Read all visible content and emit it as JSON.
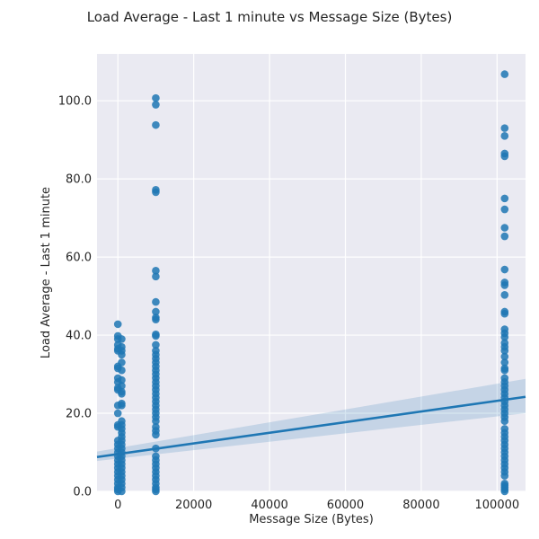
{
  "chart_data": {
    "type": "scatter",
    "title": "Load Average - Last 1 minute vs Message Size (Bytes)",
    "xlabel": "Message Size (Bytes)",
    "ylabel": "Load Average - Last 1 minute",
    "xlim": [
      -5500,
      107500
    ],
    "ylim": [
      0,
      112
    ],
    "x_ticks": [
      0,
      20000,
      40000,
      60000,
      80000,
      100000
    ],
    "y_ticks": [
      0,
      20,
      40,
      60,
      80,
      100
    ],
    "x_tick_labels": [
      "0",
      "20000",
      "40000",
      "60000",
      "80000",
      "100000"
    ],
    "y_tick_labels": [
      "0.0",
      "20.0",
      "40.0",
      "60.0",
      "80.0",
      "100.0"
    ],
    "grid": true,
    "background_color": "#eaeaf2",
    "point_color": "#1f77b4",
    "regression_line": {
      "x": [
        -5500,
        107500
      ],
      "y": [
        8.8,
        24.2
      ],
      "ci_lower": [
        7.8,
        20.0
      ],
      "ci_upper": [
        10.2,
        28.8
      ]
    },
    "series": [
      {
        "points": [
          [
            0,
            42.8
          ],
          [
            0,
            39.8
          ],
          [
            0,
            39.0
          ],
          [
            0,
            37.5
          ],
          [
            0,
            36.5
          ],
          [
            0,
            36.0
          ],
          [
            0,
            32.0
          ],
          [
            0,
            31.5
          ],
          [
            0,
            29.0
          ],
          [
            0,
            28.0
          ],
          [
            0,
            26.5
          ],
          [
            0,
            26.0
          ],
          [
            0,
            22.0
          ],
          [
            0,
            20.0
          ],
          [
            0,
            17.0
          ],
          [
            0,
            16.5
          ],
          [
            0,
            13.0
          ],
          [
            0,
            12.0
          ],
          [
            0,
            11.0
          ],
          [
            0,
            10.0
          ],
          [
            0,
            9.0
          ],
          [
            0,
            8.0
          ],
          [
            0,
            7.0
          ],
          [
            0,
            6.0
          ],
          [
            0,
            5.0
          ],
          [
            0,
            4.0
          ],
          [
            0,
            3.0
          ],
          [
            0,
            2.0
          ],
          [
            0,
            1.0
          ],
          [
            0,
            0.5
          ],
          [
            0,
            0.0
          ],
          [
            1000,
            39.0
          ],
          [
            1000,
            37.0
          ],
          [
            1000,
            36.0
          ],
          [
            1000,
            35.0
          ],
          [
            1000,
            33.0
          ],
          [
            1000,
            31.0
          ],
          [
            1000,
            28.5
          ],
          [
            1000,
            27.0
          ],
          [
            1000,
            25.5
          ],
          [
            1000,
            25.0
          ],
          [
            1000,
            22.5
          ],
          [
            1000,
            22.0
          ],
          [
            1000,
            18.0
          ],
          [
            1000,
            17.0
          ],
          [
            1000,
            16.0
          ],
          [
            1000,
            15.0
          ],
          [
            1000,
            14.0
          ],
          [
            1000,
            13.0
          ],
          [
            1000,
            12.0
          ],
          [
            1000,
            11.0
          ],
          [
            1000,
            10.0
          ],
          [
            1000,
            9.0
          ],
          [
            1000,
            8.0
          ],
          [
            1000,
            7.0
          ],
          [
            1000,
            6.0
          ],
          [
            1000,
            5.0
          ],
          [
            1000,
            4.0
          ],
          [
            1000,
            3.0
          ],
          [
            1000,
            2.0
          ],
          [
            1000,
            1.0
          ],
          [
            1000,
            0.0
          ],
          [
            10000,
            100.7
          ],
          [
            10000,
            99.0
          ],
          [
            10000,
            93.8
          ],
          [
            10000,
            77.2
          ],
          [
            10000,
            76.6
          ],
          [
            10000,
            56.5
          ],
          [
            10000,
            55.0
          ],
          [
            10000,
            48.5
          ],
          [
            10000,
            46.0
          ],
          [
            10000,
            44.5
          ],
          [
            10000,
            44.0
          ],
          [
            10000,
            40.2
          ],
          [
            10000,
            39.8
          ],
          [
            10000,
            37.5
          ],
          [
            10000,
            36.0
          ],
          [
            10000,
            35.0
          ],
          [
            10000,
            34.0
          ],
          [
            10000,
            33.0
          ],
          [
            10000,
            32.0
          ],
          [
            10000,
            31.0
          ],
          [
            10000,
            30.0
          ],
          [
            10000,
            29.0
          ],
          [
            10000,
            28.0
          ],
          [
            10000,
            27.0
          ],
          [
            10000,
            26.0
          ],
          [
            10000,
            25.0
          ],
          [
            10000,
            24.0
          ],
          [
            10000,
            23.0
          ],
          [
            10000,
            22.0
          ],
          [
            10000,
            21.0
          ],
          [
            10000,
            20.0
          ],
          [
            10000,
            19.0
          ],
          [
            10000,
            18.0
          ],
          [
            10000,
            16.5
          ],
          [
            10000,
            15.5
          ],
          [
            10000,
            14.5
          ],
          [
            10000,
            11.0
          ],
          [
            10000,
            9.0
          ],
          [
            10000,
            8.0
          ],
          [
            10000,
            7.0
          ],
          [
            10000,
            6.0
          ],
          [
            10000,
            5.0
          ],
          [
            10000,
            4.0
          ],
          [
            10000,
            3.0
          ],
          [
            10000,
            2.0
          ],
          [
            10000,
            1.0
          ],
          [
            10000,
            0.5
          ],
          [
            10000,
            0.0
          ],
          [
            102000,
            106.8
          ],
          [
            102000,
            93.0
          ],
          [
            102000,
            91.0
          ],
          [
            102000,
            86.5
          ],
          [
            102000,
            85.8
          ],
          [
            102000,
            75.0
          ],
          [
            102000,
            72.2
          ],
          [
            102000,
            67.5
          ],
          [
            102000,
            65.3
          ],
          [
            102000,
            56.8
          ],
          [
            102000,
            53.5
          ],
          [
            102000,
            52.8
          ],
          [
            102000,
            50.3
          ],
          [
            102000,
            46.0
          ],
          [
            102000,
            45.5
          ],
          [
            102000,
            41.5
          ],
          [
            102000,
            40.5
          ],
          [
            102000,
            39.5
          ],
          [
            102000,
            38.0
          ],
          [
            102000,
            37.0
          ],
          [
            102000,
            36.0
          ],
          [
            102000,
            34.5
          ],
          [
            102000,
            33.0
          ],
          [
            102000,
            31.5
          ],
          [
            102000,
            31.0
          ],
          [
            102000,
            29.0
          ],
          [
            102000,
            28.0
          ],
          [
            102000,
            27.0
          ],
          [
            102000,
            26.0
          ],
          [
            102000,
            25.0
          ],
          [
            102000,
            24.0
          ],
          [
            102000,
            23.0
          ],
          [
            102000,
            22.0
          ],
          [
            102000,
            21.0
          ],
          [
            102000,
            20.0
          ],
          [
            102000,
            19.0
          ],
          [
            102000,
            18.0
          ],
          [
            102000,
            16.0
          ],
          [
            102000,
            15.0
          ],
          [
            102000,
            14.0
          ],
          [
            102000,
            13.0
          ],
          [
            102000,
            12.0
          ],
          [
            102000,
            11.0
          ],
          [
            102000,
            10.0
          ],
          [
            102000,
            9.0
          ],
          [
            102000,
            8.0
          ],
          [
            102000,
            7.0
          ],
          [
            102000,
            6.0
          ],
          [
            102000,
            5.0
          ],
          [
            102000,
            4.0
          ],
          [
            102000,
            2.0
          ],
          [
            102000,
            1.5
          ],
          [
            102000,
            1.0
          ],
          [
            102000,
            0.5
          ],
          [
            102000,
            0.0
          ]
        ]
      }
    ]
  }
}
